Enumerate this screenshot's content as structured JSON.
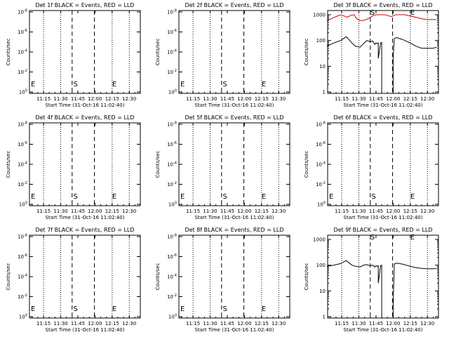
{
  "colors": {
    "background": "#ffffff",
    "events_series": "#000000",
    "lld_series": "#cc0000"
  },
  "chart_data": [
    {
      "type": "line",
      "title": "Det 1f BLACK = Events, RED = LLD",
      "xlabel": "Start Time (31-Oct-16 11:02:40)",
      "ylabel": "Counts/sec",
      "x_ticks": [
        "11:15",
        "11:30",
        "11:45",
        "12:00",
        "12:15",
        "12:30"
      ],
      "y_scale": "log",
      "y_ticks": [
        "10^0",
        "10^-2",
        "10^-4",
        "10^-6",
        "10^-8"
      ],
      "marker_labels": [
        "E",
        "S",
        "E"
      ],
      "series": []
    },
    {
      "type": "line",
      "title": "Det 2f BLACK = Events, RED = LLD",
      "xlabel": "Start Time (31-Oct-16 11:02:40)",
      "ylabel": "Counts/sec",
      "x_ticks": [
        "11:15",
        "11:30",
        "11:45",
        "12:00",
        "12:15",
        "12:30"
      ],
      "y_scale": "log",
      "y_ticks": [
        "10^0",
        "10^-2",
        "10^-4",
        "10^-6",
        "10^-8"
      ],
      "marker_labels": [
        "E",
        "S",
        "E"
      ],
      "series": []
    },
    {
      "type": "line",
      "title": "Det 3f BLACK = Events, RED = LLD",
      "xlabel": "Start Time (31-Oct-16 11:02:40)",
      "ylabel": "Counts/sec",
      "x_ticks": [
        "11:15",
        "11:30",
        "11:45",
        "12:00",
        "12:15",
        "12:30"
      ],
      "y_scale": "log",
      "y_ticks": [
        "1",
        "10",
        "100",
        "1000"
      ],
      "marker_labels": [
        "S",
        "E"
      ],
      "series": [
        {
          "color": "#000000",
          "x": [
            "11:02",
            "11:08",
            "11:14",
            "11:19",
            "11:24",
            "11:27",
            "11:31",
            "11:34",
            "11:37",
            "11:40",
            "11:42",
            "11:44",
            "11:45",
            "11:46",
            "11:47",
            "11:47",
            "11:49",
            "11:50",
            "11:50",
            "12:00",
            "12:00",
            "12:01",
            "12:03",
            "12:08",
            "12:15",
            "12:20",
            "12:25",
            "12:30",
            "12:35",
            "12:38"
          ],
          "y": [
            60,
            80,
            100,
            140,
            80,
            60,
            55,
            75,
            100,
            90,
            95,
            70,
            80,
            75,
            80,
            20,
            80,
            85,
            0,
            0,
            20,
            120,
            130,
            110,
            80,
            60,
            50,
            50,
            50,
            55
          ]
        },
        {
          "color": "#cc0000",
          "x": [
            "11:02",
            "11:06",
            "11:10",
            "11:14",
            "11:17",
            "11:20",
            "11:23",
            "11:26",
            "11:28",
            "11:31",
            "11:34",
            "11:38",
            "11:42",
            "11:45",
            "11:48",
            "11:52",
            "11:55",
            "11:58",
            "12:00",
            "12:02",
            "12:05",
            "12:10",
            "12:15",
            "12:20",
            "12:25",
            "12:30",
            "12:35",
            "12:38"
          ],
          "y": [
            600,
            700,
            850,
            1000,
            900,
            800,
            950,
            1000,
            700,
            600,
            600,
            700,
            900,
            1000,
            1000,
            1000,
            950,
            850,
            900,
            1000,
            1000,
            1000,
            900,
            800,
            700,
            650,
            650,
            650
          ]
        }
      ]
    },
    {
      "type": "line",
      "title": "Det 4f BLACK = Events, RED = LLD",
      "xlabel": "Start Time (31-Oct-16 11:02:40)",
      "ylabel": "Counts/sec",
      "x_ticks": [
        "11:15",
        "11:30",
        "11:45",
        "12:00",
        "12:15",
        "12:30"
      ],
      "y_scale": "log",
      "y_ticks": [
        "10^0",
        "10^-2",
        "10^-4",
        "10^-6",
        "10^-8"
      ],
      "marker_labels": [
        "E",
        "S",
        "E"
      ],
      "series": []
    },
    {
      "type": "line",
      "title": "Det 5f BLACK = Events, RED = LLD",
      "xlabel": "Start Time (31-Oct-16 11:02:40)",
      "ylabel": "Counts/sec",
      "x_ticks": [
        "11:15",
        "11:30",
        "11:45",
        "12:00",
        "12:15",
        "12:30"
      ],
      "y_scale": "log",
      "y_ticks": [
        "10^0",
        "10^-2",
        "10^-4",
        "10^-6",
        "10^-8"
      ],
      "marker_labels": [
        "E",
        "S",
        "E"
      ],
      "series": []
    },
    {
      "type": "line",
      "title": "Det 6f BLACK = Events, RED = LLD",
      "xlabel": "Start Time (31-Oct-16 11:02:40)",
      "ylabel": "Counts/sec",
      "x_ticks": [
        "11:15",
        "11:30",
        "11:45",
        "12:00",
        "12:15",
        "12:30"
      ],
      "y_scale": "log",
      "y_ticks": [
        "10^0",
        "10^-2",
        "10^-4",
        "10^-6",
        "10^-8"
      ],
      "marker_labels": [
        "E",
        "S",
        "E"
      ],
      "series": []
    },
    {
      "type": "line",
      "title": "Det 7f BLACK = Events, RED = LLD",
      "xlabel": "Start Time (31-Oct-16 11:02:40)",
      "ylabel": "Counts/sec",
      "x_ticks": [
        "11:15",
        "11:30",
        "11:45",
        "12:00",
        "12:15",
        "12:30"
      ],
      "y_scale": "log",
      "y_ticks": [
        "10^0",
        "10^-2",
        "10^-4",
        "10^-6",
        "10^-8"
      ],
      "marker_labels": [
        "E",
        "S",
        "E"
      ],
      "series": []
    },
    {
      "type": "line",
      "title": "Det 8f BLACK = Events, RED = LLD",
      "xlabel": "Start Time (31-Oct-16 11:02:40)",
      "ylabel": "Counts/sec",
      "x_ticks": [
        "11:15",
        "11:30",
        "11:45",
        "12:00",
        "12:15",
        "12:30"
      ],
      "y_scale": "log",
      "y_ticks": [
        "10^0",
        "10^-2",
        "10^-4",
        "10^-6",
        "10^-8"
      ],
      "marker_labels": [
        "E",
        "S",
        "E"
      ],
      "series": []
    },
    {
      "type": "line",
      "title": "Det 9f BLACK = Events, RED = LLD",
      "xlabel": "Start Time (31-Oct-16 11:02:40)",
      "ylabel": "Counts/sec",
      "x_ticks": [
        "11:15",
        "11:30",
        "11:45",
        "12:00",
        "12:15",
        "12:30"
      ],
      "y_scale": "log",
      "y_ticks": [
        "1",
        "10",
        "100",
        "1000"
      ],
      "marker_labels": [
        "S",
        "E"
      ],
      "series": [
        {
          "color": "#000000",
          "x": [
            "11:02",
            "11:08",
            "11:14",
            "11:19",
            "11:24",
            "11:27",
            "11:31",
            "11:34",
            "11:37",
            "11:40",
            "11:42",
            "11:44",
            "11:45",
            "11:46",
            "11:47",
            "11:47",
            "11:49",
            "11:50",
            "11:50",
            "12:00",
            "12:00",
            "12:01",
            "12:03",
            "12:08",
            "12:15",
            "12:20",
            "12:25",
            "12:30",
            "12:35",
            "12:38"
          ],
          "y": [
            90,
            100,
            115,
            150,
            100,
            90,
            85,
            100,
            105,
            95,
            100,
            85,
            95,
            90,
            95,
            20,
            95,
            100,
            0,
            0,
            3,
            110,
            120,
            110,
            90,
            80,
            75,
            72,
            72,
            75
          ]
        }
      ]
    }
  ]
}
